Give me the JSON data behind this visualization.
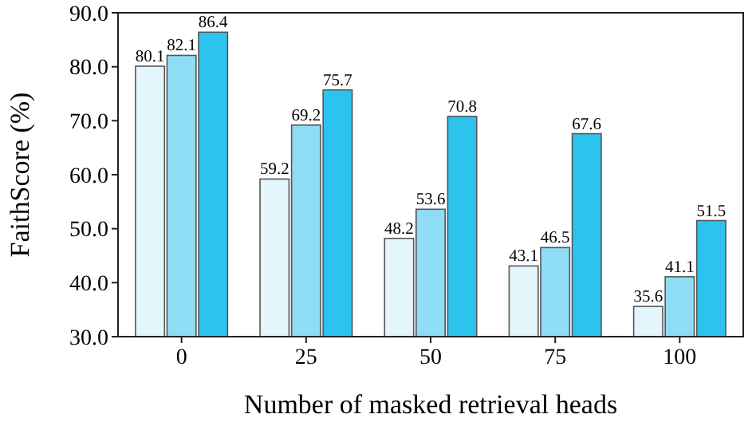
{
  "chart_data": {
    "type": "bar",
    "xlabel": "Number of masked retrieval heads",
    "ylabel": "FaithScore (%)",
    "categories": [
      "0",
      "25",
      "50",
      "75",
      "100"
    ],
    "series": [
      {
        "color": "#e3f6fc",
        "values": [
          80.1,
          59.2,
          48.2,
          43.1,
          35.6
        ]
      },
      {
        "color": "#8fdcf5",
        "values": [
          82.1,
          69.2,
          53.6,
          46.5,
          41.1
        ]
      },
      {
        "color": "#2cc4ef",
        "values": [
          86.4,
          75.7,
          70.8,
          67.6,
          51.5
        ]
      }
    ],
    "ylim": [
      30,
      90
    ],
    "yticks": [
      {
        "value": 30,
        "label": "30.0"
      },
      {
        "value": 40,
        "label": "40.0"
      },
      {
        "value": 50,
        "label": "50.0"
      },
      {
        "value": 60,
        "label": "60.0"
      },
      {
        "value": 70,
        "label": "70.0"
      },
      {
        "value": 80,
        "label": "80.0"
      },
      {
        "value": 90,
        "label": "90.0"
      }
    ],
    "data_labels": true
  }
}
